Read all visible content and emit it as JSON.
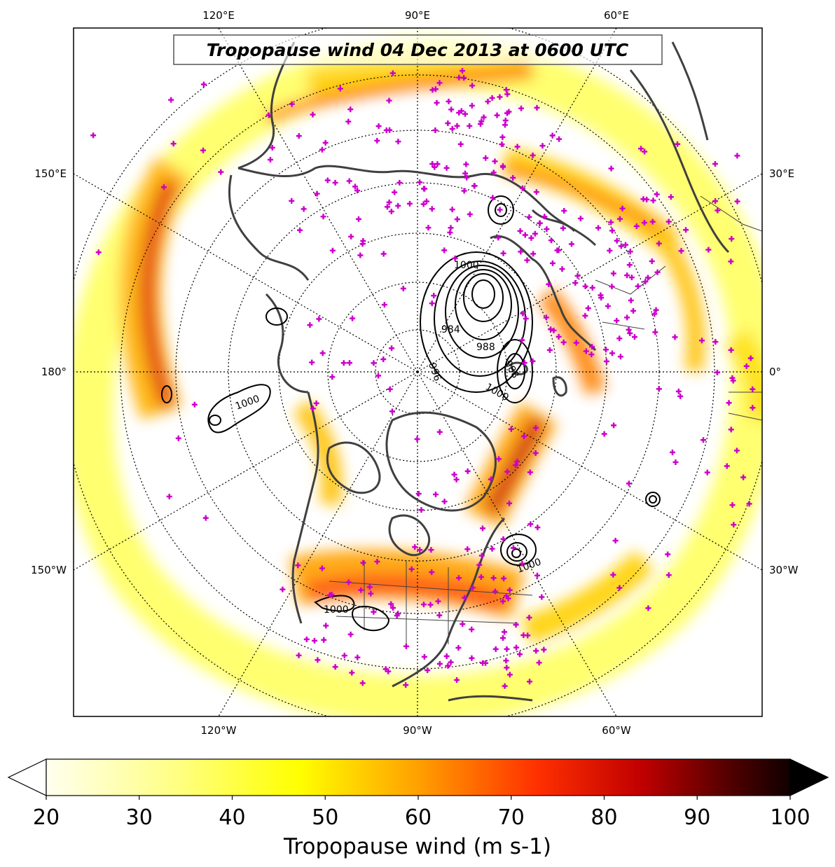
{
  "title": "Tropopause wind 04 Dec 2013 at 0600 UTC",
  "colorbar": {
    "label": "Tropopause wind (m s-1)",
    "min": 20,
    "max": 100,
    "tick_labels": [
      "20",
      "30",
      "40",
      "50",
      "60",
      "70",
      "80",
      "90",
      "100"
    ],
    "extend": "both",
    "colormap": "hot_r"
  },
  "map": {
    "projection": "north polar stereographic",
    "longitude_labels": {
      "top": [
        "120°E",
        "90°E",
        "60°E"
      ],
      "left": [
        "150°E",
        "180°",
        "150°W"
      ],
      "right": [
        "30°E",
        "0°",
        "30°W"
      ],
      "bottom": [
        "120°W",
        "90°W",
        "60°W"
      ]
    },
    "pressure_contours": [
      "1000",
      "996",
      "992",
      "988",
      "984",
      "1000",
      "988",
      "1000",
      "1000",
      "1000"
    ],
    "station_marker_color": "#cc00cc",
    "coastline_color": "#404040"
  }
}
